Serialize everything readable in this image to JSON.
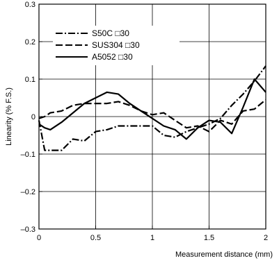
{
  "chart_data": {
    "type": "line",
    "title": "",
    "xlabel": "Measurement distance (mm)",
    "ylabel": "Linearity (% F.S.)",
    "xlim": [
      0,
      2
    ],
    "ylim": [
      -0.3,
      0.3
    ],
    "grid": true,
    "legend_position": "top-left",
    "x_ticks": [
      0,
      0.5,
      1,
      1.5,
      2
    ],
    "x_tick_labels": [
      "0",
      "0.5",
      "1",
      "1.5",
      "2"
    ],
    "y_ticks": [
      -0.3,
      -0.2,
      -0.1,
      0,
      0.1,
      0.2,
      0.3
    ],
    "y_tick_labels": [
      "–0.3",
      "–0.2",
      "–0.1",
      "0",
      "0.1",
      "0.2",
      "0.3"
    ],
    "series": [
      {
        "name": "S50C □30",
        "style": "dash-dot",
        "x": [
          0,
          0.05,
          0.1,
          0.2,
          0.3,
          0.4,
          0.5,
          0.6,
          0.7,
          0.8,
          0.9,
          1.0,
          1.1,
          1.2,
          1.3,
          1.4,
          1.5,
          1.6,
          1.7,
          1.8,
          1.9,
          2.0
        ],
        "y": [
          -0.01,
          -0.09,
          -0.09,
          -0.09,
          -0.06,
          -0.065,
          -0.04,
          -0.035,
          -0.025,
          -0.025,
          -0.025,
          -0.025,
          -0.05,
          -0.055,
          -0.04,
          -0.03,
          -0.02,
          -0.005,
          0.03,
          0.06,
          0.095,
          0.135
        ]
      },
      {
        "name": "SUS304 □30",
        "style": "dashed",
        "x": [
          0,
          0.05,
          0.1,
          0.2,
          0.3,
          0.4,
          0.5,
          0.6,
          0.7,
          0.8,
          0.9,
          1.0,
          1.1,
          1.2,
          1.3,
          1.4,
          1.5,
          1.6,
          1.7,
          1.8,
          1.9,
          2.0
        ],
        "y": [
          -0.005,
          0.0,
          0.01,
          0.015,
          0.03,
          0.035,
          0.035,
          0.035,
          0.04,
          0.03,
          0.015,
          0.005,
          0.01,
          -0.01,
          -0.03,
          -0.025,
          -0.04,
          -0.01,
          -0.02,
          0.015,
          0.02,
          0.045
        ]
      },
      {
        "name": "A5052 □30",
        "style": "solid",
        "x": [
          0,
          0.05,
          0.1,
          0.2,
          0.3,
          0.4,
          0.5,
          0.6,
          0.7,
          0.8,
          0.9,
          1.0,
          1.1,
          1.2,
          1.3,
          1.4,
          1.5,
          1.6,
          1.7,
          1.8,
          1.9,
          2.0
        ],
        "y": [
          -0.02,
          -0.03,
          -0.035,
          -0.015,
          0.01,
          0.035,
          0.05,
          0.065,
          0.06,
          0.035,
          0.015,
          -0.005,
          -0.025,
          -0.035,
          -0.06,
          -0.03,
          -0.01,
          -0.015,
          -0.045,
          0.025,
          0.1,
          0.065
        ]
      }
    ]
  }
}
